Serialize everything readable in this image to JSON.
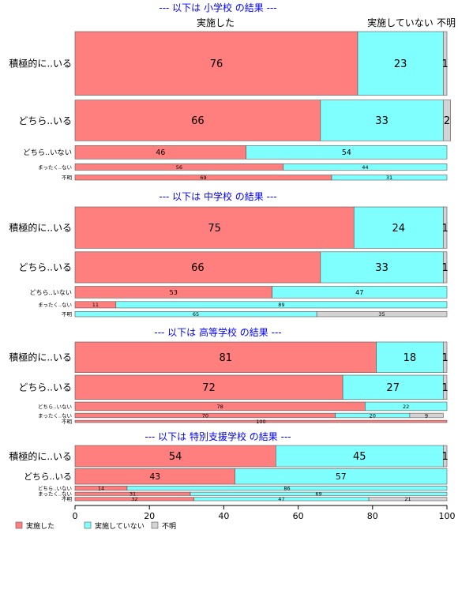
{
  "colors": {
    "implemented": "#FF7F7F",
    "not_implemented": "#80FFFF",
    "unknown": "#D3D3D3",
    "title": "#0000FF"
  },
  "header_labels": {
    "implemented": "実施した",
    "not_implemented": "実施していない",
    "unknown": "不明"
  },
  "legend": [
    {
      "label": "実施した",
      "color_key": "implemented"
    },
    {
      "label": "実施していない",
      "color_key": "not_implemented"
    },
    {
      "label": "不明",
      "color_key": "unknown"
    }
  ],
  "chart_data": {
    "type": "bar",
    "orientation": "horizontal",
    "stacked": true,
    "xlim": [
      0,
      100
    ],
    "xticks": [
      0,
      20,
      40,
      60,
      80,
      100
    ],
    "grid": false,
    "legend_position": "bottom-left",
    "series_names": [
      "実施した",
      "実施していない",
      "不明"
    ],
    "panels": [
      {
        "title": "--- 以下は 小学校 の結果 ---",
        "rows": [
          {
            "label": "積極的に..いる",
            "values": [
              76,
              23,
              1
            ],
            "weight": 5
          },
          {
            "label": "どちら..いる",
            "values": [
              66,
              33,
              2
            ],
            "weight": 3.2
          },
          {
            "label": "どちら..いない",
            "values": [
              46,
              54,
              0
            ],
            "weight": 1.05
          },
          {
            "label": "まったく..ない",
            "values": [
              56,
              44,
              0
            ],
            "weight": 0.5
          },
          {
            "label": "不明",
            "values": [
              69,
              31,
              0
            ],
            "weight": 0.4
          }
        ]
      },
      {
        "title": "--- 以下は 中学校 の結果 ---",
        "rows": [
          {
            "label": "積極的に..いる",
            "values": [
              75,
              24,
              1
            ],
            "weight": 3.2
          },
          {
            "label": "どちら..いる",
            "values": [
              66,
              33,
              1
            ],
            "weight": 2.4
          },
          {
            "label": "どちら..いない",
            "values": [
              53,
              47,
              0
            ],
            "weight": 0.9
          },
          {
            "label": "まったく..ない",
            "values": [
              11,
              89,
              0
            ],
            "weight": 0.5
          },
          {
            "label": "不明",
            "values": [
              0,
              65,
              35
            ],
            "weight": 0.4
          }
        ]
      },
      {
        "title": "--- 以下は 高等学校 の結果 ---",
        "rows": [
          {
            "label": "積極的に..いる",
            "values": [
              81,
              18,
              1
            ],
            "weight": 3.4
          },
          {
            "label": "どちら..いる",
            "values": [
              72,
              27,
              1
            ],
            "weight": 2.7
          },
          {
            "label": "どちら..いない",
            "values": [
              78,
              22,
              0
            ],
            "weight": 0.95
          },
          {
            "label": "まったく..ない",
            "values": [
              70,
              20,
              9
            ],
            "weight": 0.5
          },
          {
            "label": "不明",
            "values": [
              100,
              0,
              0
            ],
            "weight": 0.25
          }
        ]
      },
      {
        "title": "--- 以下は 特別支援学校 の結果 ---",
        "rows": [
          {
            "label": "積極的に..いる",
            "values": [
              54,
              45,
              1
            ],
            "weight": 2.2
          },
          {
            "label": "どちら..いる",
            "values": [
              43,
              57,
              0
            ],
            "weight": 1.6
          },
          {
            "label": "どちら..いない",
            "values": [
              14,
              86,
              0
            ],
            "weight": 0.45
          },
          {
            "label": "まったく..ない",
            "values": [
              31,
              69,
              0
            ],
            "weight": 0.35
          },
          {
            "label": "不明",
            "values": [
              32,
              47,
              21
            ],
            "weight": 0.35
          }
        ]
      }
    ]
  }
}
